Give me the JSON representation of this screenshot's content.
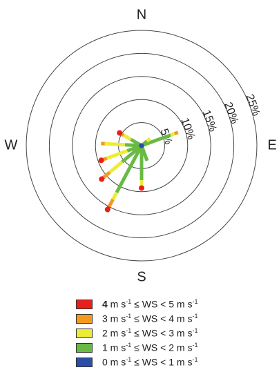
{
  "chart_data": {
    "type": "wind-rose",
    "directions": [
      "N",
      "E",
      "S",
      "W"
    ],
    "ring_labels": [
      "5%",
      "10%",
      "15%",
      "20%",
      "25%"
    ],
    "r_max_percent": 25,
    "grid": true,
    "speed_bins": [
      {
        "label": "4 m s-1 ≤ WS < 5 m s-1",
        "lo": 4,
        "color": "#e8201c"
      },
      {
        "label": "3 m s-1 ≤ WS < 4 m s-1",
        "lo": 3,
        "color": "#f39a1e"
      },
      {
        "label": "2 m s-1 ≤ WS < 3 m s-1",
        "lo": 2,
        "color": "#ecec38"
      },
      {
        "label": "1 m s-1 ≤ WS < 2 m s-1",
        "lo": 1,
        "color": "#69ba45"
      },
      {
        "label": "0 m s-1 ≤ WS < 1 m s-1",
        "lo": 0,
        "color": "#2b4ea6"
      }
    ],
    "sectors": [
      {
        "direction_deg": 70,
        "bins": [
          {
            "lo": 0,
            "to_percent": 0.5
          },
          {
            "lo": 1,
            "to_percent": 6.7
          },
          {
            "lo": 2,
            "to_percent": 7.6
          },
          {
            "lo": 3,
            "to_percent": 8.4
          }
        ]
      },
      {
        "direction_deg": 50,
        "bins": [
          {
            "lo": 0,
            "to_percent": 0.5
          },
          {
            "lo": 1,
            "to_percent": 1.5
          },
          {
            "lo": 2,
            "to_percent": 2.4
          }
        ]
      },
      {
        "direction_deg": 300,
        "bins": [
          {
            "lo": 0,
            "to_percent": 0.5
          },
          {
            "lo": 1,
            "to_percent": 2.7
          },
          {
            "lo": 2,
            "to_percent": 4.5
          },
          {
            "lo": 3,
            "to_percent": 5.2
          },
          {
            "lo": 4,
            "to_percent": 5.5
          }
        ]
      },
      {
        "direction_deg": 273,
        "bins": [
          {
            "lo": 0,
            "to_percent": 0.5
          },
          {
            "lo": 1,
            "to_percent": 3.6
          },
          {
            "lo": 2,
            "to_percent": 8.0
          },
          {
            "lo": 3,
            "to_percent": 8.8
          }
        ]
      },
      {
        "direction_deg": 250,
        "bins": [
          {
            "lo": 0,
            "to_percent": 0.5
          },
          {
            "lo": 1,
            "to_percent": 3.3
          },
          {
            "lo": 2,
            "to_percent": 8.0
          },
          {
            "lo": 3,
            "to_percent": 8.9
          },
          {
            "lo": 4,
            "to_percent": 9.3
          }
        ]
      },
      {
        "direction_deg": 230,
        "bins": [
          {
            "lo": 0,
            "to_percent": 0.5
          },
          {
            "lo": 1,
            "to_percent": 5.5
          },
          {
            "lo": 2,
            "to_percent": 9.0
          },
          {
            "lo": 3,
            "to_percent": 10.7
          },
          {
            "lo": 4,
            "to_percent": 11.3
          }
        ]
      },
      {
        "direction_deg": 208,
        "bins": [
          {
            "lo": 0,
            "to_percent": 0.5
          },
          {
            "lo": 1,
            "to_percent": 11.5
          },
          {
            "lo": 2,
            "to_percent": 13.2
          },
          {
            "lo": 3,
            "to_percent": 15.0
          },
          {
            "lo": 4,
            "to_percent": 15.7
          }
        ]
      },
      {
        "direction_deg": 180,
        "bins": [
          {
            "lo": 0,
            "to_percent": 0.5
          },
          {
            "lo": 1,
            "to_percent": 7.5
          },
          {
            "lo": 2,
            "to_percent": 8.8
          },
          {
            "lo": 4,
            "to_percent": 9.2
          }
        ]
      },
      {
        "direction_deg": 160,
        "bins": [
          {
            "lo": 0,
            "to_percent": 0.5
          },
          {
            "lo": 1,
            "to_percent": 3.5
          }
        ]
      }
    ]
  }
}
